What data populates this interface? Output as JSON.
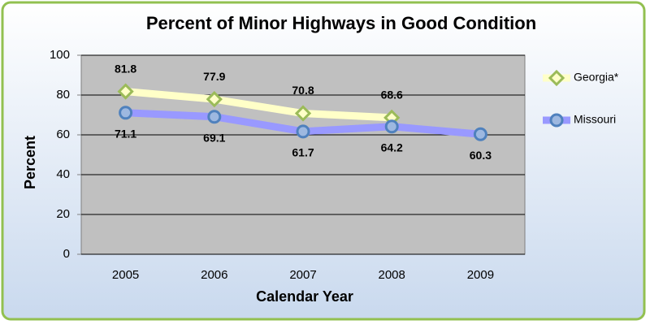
{
  "chart_data": {
    "type": "line",
    "title": "Percent of Minor Highways in Good Condition",
    "x_label": "Calendar Year",
    "y_label": "Percent",
    "categories": [
      "2005",
      "2006",
      "2007",
      "2008",
      "2009"
    ],
    "series": [
      {
        "name": "Georgia*",
        "color": "#ffffc8",
        "marker_color": "#9bbb59",
        "marker": "diamond",
        "label_position": "above",
        "values": [
          81.8,
          77.9,
          70.8,
          68.6,
          null
        ]
      },
      {
        "name": "Missouri",
        "color": "#9999ff",
        "marker_color": "#4f81bd",
        "marker": "circle",
        "label_position": "below",
        "values": [
          71.1,
          69.1,
          61.7,
          64.2,
          60.3
        ]
      }
    ],
    "ylim": [
      0,
      100
    ],
    "yticks": [
      0,
      20,
      40,
      60,
      80,
      100
    ],
    "grid": true,
    "data_labels": true,
    "legend": "right"
  }
}
